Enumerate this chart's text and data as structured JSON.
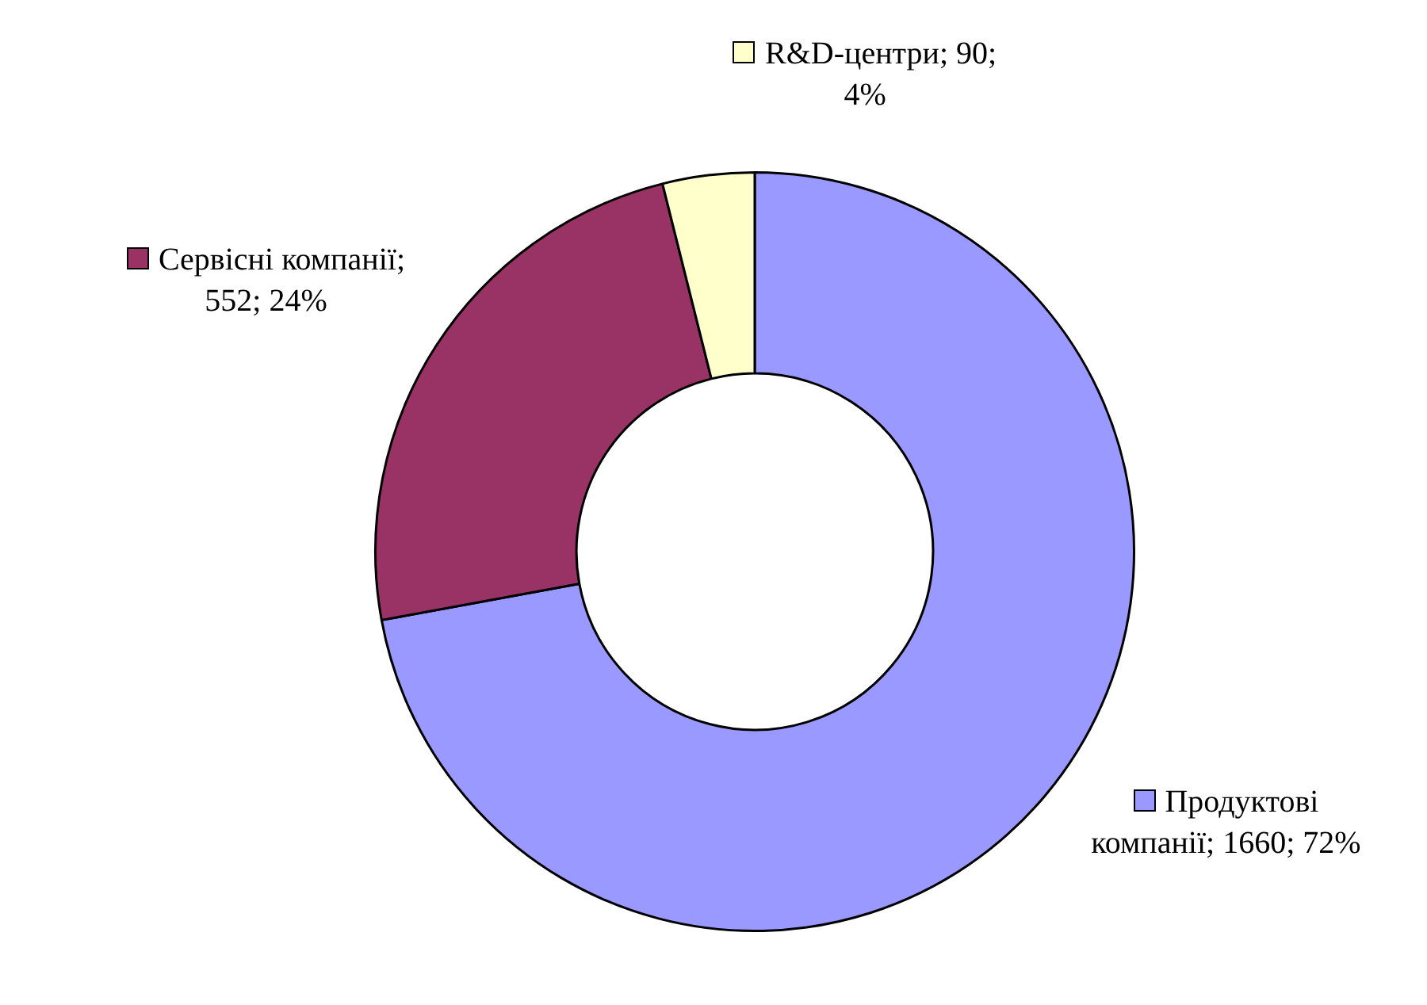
{
  "chart_data": {
    "type": "donut",
    "categories": [
      "Продуктові компанії",
      "Сервісні компанії",
      "R&D-центри"
    ],
    "values": [
      1660,
      552,
      90
    ],
    "colors": [
      "#9999ff",
      "#993366",
      "#ffffcc"
    ],
    "value_labels": [
      "; 1660; 72%",
      "; 552; 24%",
      "; 90; 4%"
    ],
    "legend": "right"
  }
}
